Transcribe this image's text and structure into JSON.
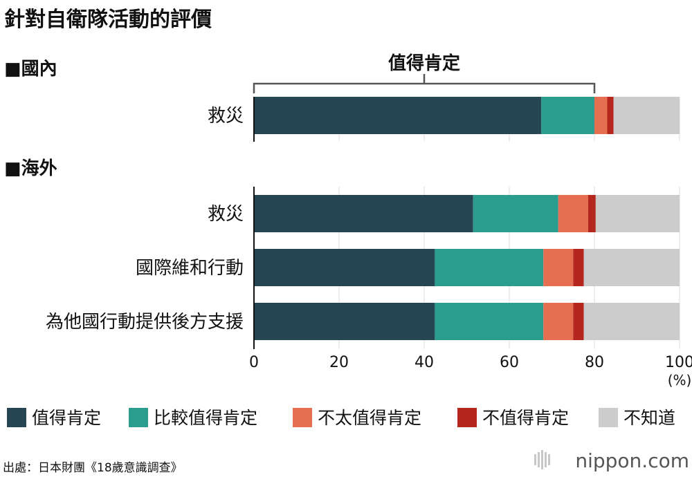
{
  "chart_data": {
    "type": "bar",
    "orientation": "horizontal",
    "stacked": true,
    "title": "針對自衛隊活動的評價",
    "groups": [
      {
        "label": "■國內",
        "categories": [
          "救災"
        ]
      },
      {
        "label": "■海外",
        "categories": [
          "救災",
          "國際維和行動",
          "為他國行動提供後方支援"
        ]
      }
    ],
    "categories": [
      "救災",
      "救災",
      "國際維和行動",
      "為他國行動提供後方支援"
    ],
    "series": [
      {
        "name": "值得肯定",
        "color": "#264653",
        "values": [
          67.5,
          51.5,
          42.5,
          42.5
        ]
      },
      {
        "name": "比較值得肯定",
        "color": "#2a9d8f",
        "values": [
          12.5,
          20.0,
          25.5,
          25.5
        ]
      },
      {
        "name": "不太值得肯定",
        "color": "#e76f51",
        "values": [
          3.0,
          7.0,
          7.0,
          7.0
        ]
      },
      {
        "name": "不值得肯定",
        "color": "#b5261e",
        "values": [
          1.5,
          1.8,
          2.5,
          2.5
        ]
      },
      {
        "name": "不知道",
        "color": "#cccccc",
        "values": [
          15.5,
          19.7,
          22.5,
          22.5
        ]
      }
    ],
    "bracket": {
      "label": "值得肯定",
      "from": 0,
      "to": 80
    },
    "xlim": [
      0,
      100
    ],
    "xticks": [
      0,
      20,
      40,
      60,
      80,
      100
    ],
    "x_unit": "(%)",
    "grid": true,
    "legend_position": "bottom",
    "source": "出處：日本財團《18歲意識調查》",
    "brand": "nippon.com"
  }
}
